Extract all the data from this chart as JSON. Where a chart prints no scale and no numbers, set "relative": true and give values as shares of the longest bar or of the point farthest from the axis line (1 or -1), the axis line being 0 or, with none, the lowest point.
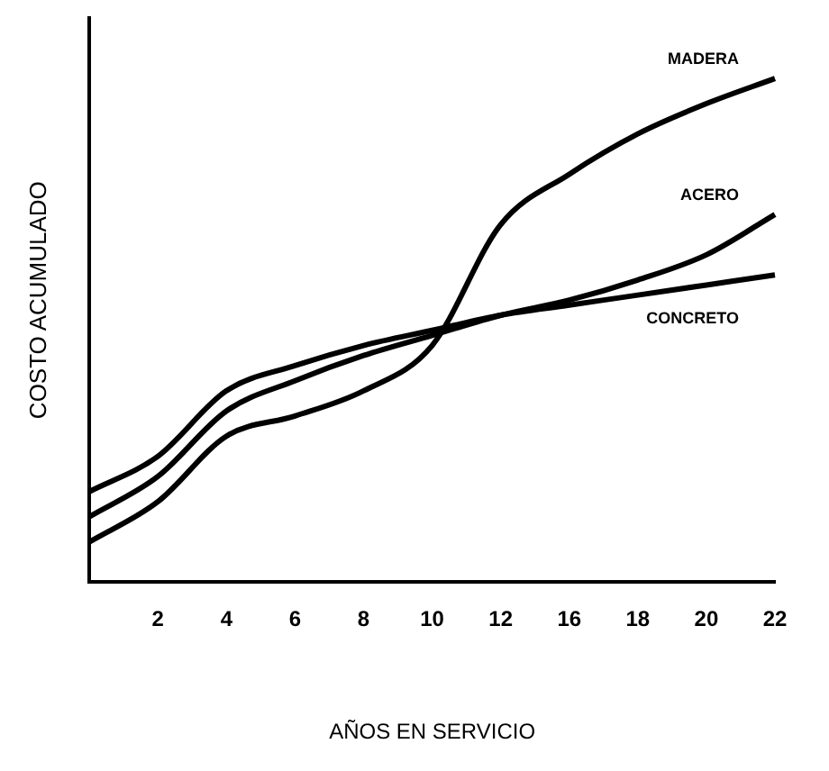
{
  "chart_data": {
    "type": "line",
    "xlabel": "AÑOS EN SERVICIO",
    "ylabel": "COSTO ACUMULADO",
    "relative": true,
    "grid": false,
    "legend": false,
    "marker": "none",
    "line_style": "solid",
    "categories": [
      null,
      "2",
      "4",
      "6",
      "8",
      "10",
      "12",
      "16",
      "18",
      "20",
      "22"
    ],
    "series": [
      {
        "name": "MADERA",
        "color": "#000000",
        "values": [
          0.08,
          0.16,
          0.29,
          0.33,
          0.38,
          0.47,
          0.71,
          0.81,
          0.89,
          0.95,
          1
        ]
      },
      {
        "name": "ACERO",
        "color": "#000000",
        "values": [
          0.13,
          0.21,
          0.34,
          0.4,
          0.45,
          0.49,
          0.53,
          0.56,
          0.6,
          0.65,
          0.73
        ]
      },
      {
        "name": "CONCRETO",
        "color": "#000000",
        "values": [
          0.18,
          0.25,
          0.38,
          0.43,
          0.47,
          0.5,
          0.53,
          0.55,
          0.57,
          0.59,
          0.61
        ]
      }
    ]
  }
}
